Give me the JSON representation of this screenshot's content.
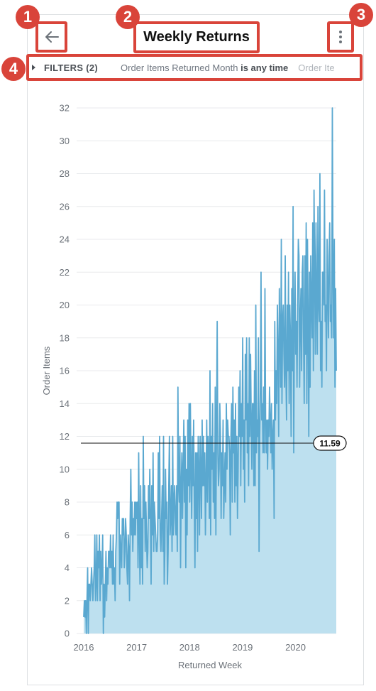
{
  "header": {
    "title": "Weekly Returns",
    "back_icon": "arrow-left-icon",
    "more_icon": "vertical-dots-icon"
  },
  "annotations": [
    "1",
    "2",
    "3",
    "4"
  ],
  "filters": {
    "label": "FILTERS (2)",
    "filter1_field": "Order Items Returned Month",
    "filter1_condition": "is any time",
    "filter2_prefix": "Order Ite"
  },
  "colors": {
    "highlight": "#d9443a",
    "line": "#5aa8d0",
    "area": "#bde0ef"
  },
  "chart_data": {
    "type": "area",
    "xlabel": "Returned Week",
    "ylabel": "Order Items",
    "ylim": [
      0,
      32
    ],
    "yticks": [
      "0",
      "2",
      "4",
      "6",
      "8",
      "10",
      "12",
      "14",
      "16",
      "18",
      "20",
      "22",
      "24",
      "26",
      "28",
      "30",
      "32"
    ],
    "xlim": [
      2016.0,
      2020.77
    ],
    "xticks": [
      "2016",
      "2017",
      "2018",
      "2019",
      "2020"
    ],
    "reference_line": {
      "value": 11.59,
      "label": "11.59"
    },
    "series": [
      {
        "values": [
          1,
          2,
          1,
          2,
          0,
          2,
          4,
          0,
          3,
          3,
          2,
          3,
          4,
          3,
          2,
          3,
          4,
          6,
          2,
          3,
          6,
          2,
          5,
          4,
          6,
          2,
          5,
          3,
          4,
          6,
          0,
          3,
          1,
          3,
          5,
          2,
          4,
          3,
          5,
          5,
          4,
          6,
          4,
          5,
          3,
          6,
          3,
          4,
          2,
          5,
          6,
          8,
          7,
          8,
          8,
          3,
          6,
          5,
          4,
          7,
          6,
          7,
          4,
          5,
          7,
          6,
          4,
          3,
          6,
          5,
          2,
          7,
          10,
          6,
          8,
          5,
          7,
          6,
          8,
          6,
          8,
          7,
          8,
          4,
          11,
          6,
          3,
          9,
          4,
          7,
          3,
          12,
          7,
          9,
          5,
          8,
          6,
          4,
          5,
          9,
          7,
          10,
          7,
          3,
          9,
          6,
          11,
          5,
          8,
          7,
          6,
          5,
          5,
          6,
          11,
          7,
          12,
          6,
          5,
          7,
          9,
          5,
          12,
          3,
          5,
          10,
          7,
          8,
          3,
          5,
          9,
          12,
          6,
          7,
          9,
          5,
          12,
          6,
          8,
          9,
          7,
          6,
          9,
          5,
          15,
          9,
          8,
          12,
          4,
          9,
          11,
          7,
          10,
          13,
          8,
          12,
          4,
          10,
          6,
          13,
          9,
          14,
          8,
          14,
          10,
          7,
          12,
          9,
          13,
          8,
          4,
          11,
          7,
          11,
          5,
          12,
          10,
          6,
          12,
          10,
          7,
          13,
          9,
          12,
          9,
          11,
          6,
          9,
          13,
          8,
          12,
          11,
          7,
          16,
          6,
          12,
          10,
          14,
          8,
          11,
          7,
          15,
          6,
          13,
          19,
          11,
          9,
          10,
          14,
          12,
          7,
          11,
          9,
          13,
          7,
          9,
          11,
          8,
          14,
          10,
          13,
          12,
          12,
          11,
          6,
          12,
          14,
          8,
          15,
          11,
          13,
          8,
          14,
          9,
          12,
          7,
          10,
          15,
          12,
          16,
          9,
          14,
          12,
          18,
          10,
          13,
          8,
          17,
          13,
          18,
          11,
          14,
          9,
          18,
          12,
          17,
          13,
          10,
          14,
          14,
          9,
          16,
          9,
          20,
          11,
          13,
          12,
          18,
          5,
          12,
          15,
          22,
          13,
          14,
          11,
          15,
          11,
          21,
          13,
          11,
          13,
          10,
          13,
          12,
          15,
          13,
          11,
          14,
          10,
          12,
          13,
          7,
          19,
          13,
          16,
          14,
          20,
          17,
          12,
          21,
          18,
          15,
          24,
          14,
          19,
          20,
          17,
          15,
          23,
          16,
          13,
          20,
          16,
          22,
          14,
          20,
          18,
          12,
          21,
          16,
          26,
          11,
          19,
          22,
          17,
          19,
          15,
          20,
          24,
          23,
          15,
          19,
          21,
          16,
          22,
          23,
          18,
          14,
          23,
          17,
          25,
          14,
          24,
          19,
          12,
          22,
          15,
          23,
          20,
          18,
          25,
          16,
          27,
          22,
          17,
          25,
          20,
          17,
          26,
          20,
          19,
          28,
          16,
          19,
          15,
          22,
          22,
          20,
          27,
          19,
          20,
          16,
          24,
          21,
          18,
          23,
          25,
          19,
          20,
          18,
          32,
          22,
          18,
          24,
          15,
          21,
          16
        ]
      }
    ]
  }
}
